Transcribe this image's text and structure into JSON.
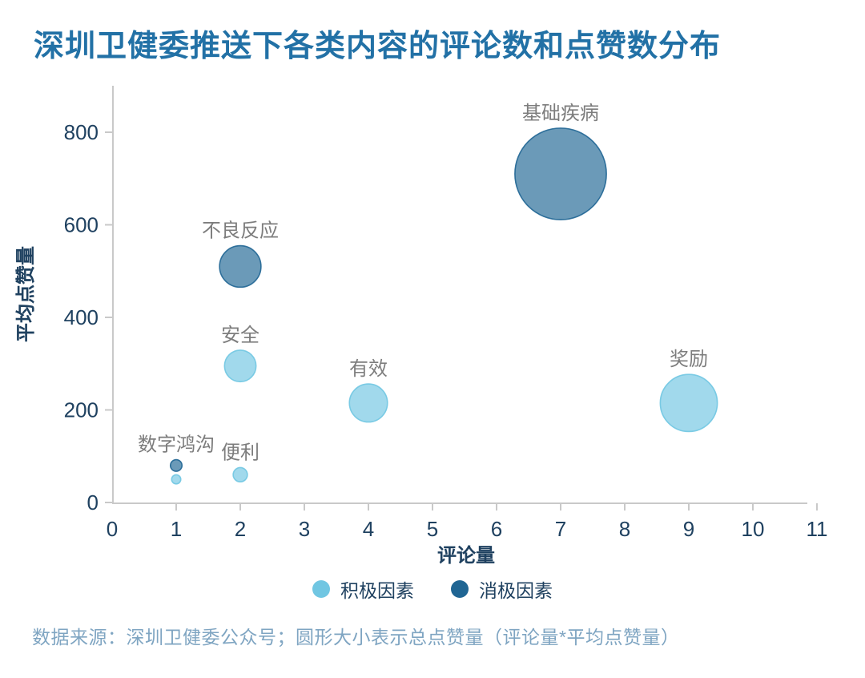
{
  "title": "深圳卫健委推送下各类内容的评论数和点赞数分布",
  "footer": "数据来源：深圳卫健委公众号；圆形大小表示总点赞量（评论量*平均点赞量）",
  "colors": {
    "title_text": "#2271a6",
    "axis_text": "#1f4160",
    "axis_line": "#c9c9c9",
    "bubble_label_text": "#7d7d7d",
    "positive": "#70c6e2",
    "negative": "#1f6593",
    "footer_text": "#7fa5c2"
  },
  "legend": {
    "items": [
      {
        "label": "积极因素",
        "color": "#70c6e2"
      },
      {
        "label": "消极因素",
        "color": "#1f6593"
      }
    ]
  },
  "chart_data": {
    "type": "scatter",
    "title": "深圳卫健委推送下各类内容的评论数和点赞数分布",
    "xlabel": "评论量",
    "ylabel": "平均点赞量",
    "xlim": [
      0,
      11
    ],
    "ylim": [
      0,
      880
    ],
    "x_ticks": [
      0,
      1,
      2,
      3,
      4,
      5,
      6,
      7,
      8,
      9,
      10,
      11
    ],
    "y_ticks": [
      0,
      200,
      400,
      600,
      800
    ],
    "grid": false,
    "legend_position": "bottom",
    "size_encoding": "总点赞量（评论量*平均点赞量）",
    "series": [
      {
        "name": "积极因素",
        "color": "#70c6e2",
        "points": [
          {
            "label": "安全",
            "x": 2,
            "y": 295,
            "total_likes": 590
          },
          {
            "label": "有效",
            "x": 4,
            "y": 215,
            "total_likes": 860
          },
          {
            "label": "奖励",
            "x": 9,
            "y": 215,
            "total_likes": 1935
          },
          {
            "label": "便利",
            "x": 2,
            "y": 60,
            "total_likes": 120
          },
          {
            "label": "",
            "x": 1,
            "y": 50,
            "total_likes": 50
          }
        ]
      },
      {
        "name": "消极因素",
        "color": "#1f6593",
        "points": [
          {
            "label": "基础疾病",
            "x": 7,
            "y": 710,
            "total_likes": 4970
          },
          {
            "label": "不良反应",
            "x": 2,
            "y": 510,
            "total_likes": 1020
          },
          {
            "label": "数字鸿沟",
            "x": 1,
            "y": 80,
            "total_likes": 80
          }
        ]
      }
    ]
  }
}
